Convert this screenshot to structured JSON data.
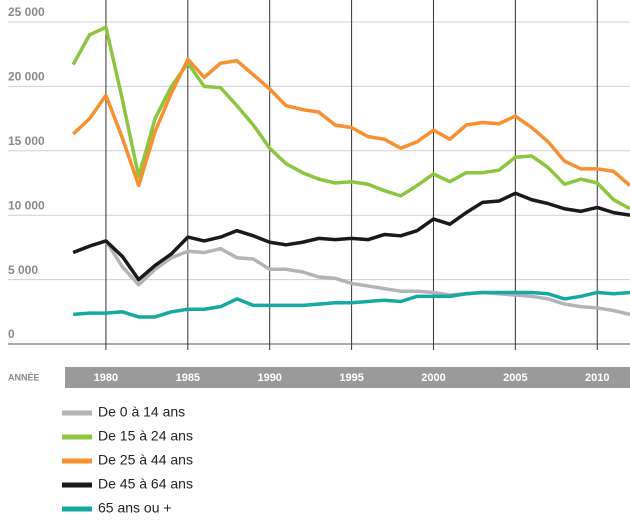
{
  "chart_data": {
    "type": "line",
    "x_label": "ANNÉE",
    "x": [
      1978,
      1979,
      1980,
      1981,
      1982,
      1983,
      1984,
      1985,
      1986,
      1987,
      1988,
      1989,
      1990,
      1991,
      1992,
      1993,
      1994,
      1995,
      1996,
      1997,
      1998,
      1999,
      2000,
      2001,
      2002,
      2003,
      2004,
      2005,
      2006,
      2007,
      2008,
      2009,
      2010,
      2011,
      2012
    ],
    "xlim": [
      1977.5,
      2012
    ],
    "xticks": [
      1980,
      1985,
      1990,
      1995,
      2000,
      2005,
      2010
    ],
    "ylim": [
      0,
      25000
    ],
    "yticks": [
      0,
      {
        "value": 5000,
        "label": "5 000"
      },
      {
        "value": 10000,
        "label": "10 000"
      },
      {
        "value": 15000,
        "label": "15 000"
      },
      {
        "value": 20000,
        "label": "20 000"
      },
      {
        "value": 25000,
        "label": "25 000"
      }
    ],
    "grid": true,
    "series": [
      {
        "name": "De 0 à 14 ans",
        "color": "#b3b3b8",
        "values": [
          7100,
          7600,
          8000,
          6000,
          4600,
          5800,
          6700,
          7200,
          7100,
          7400,
          6700,
          6600,
          5800,
          5800,
          5600,
          5200,
          5100,
          4700,
          4500,
          4300,
          4100,
          4100,
          4000,
          3800,
          3900,
          4000,
          3900,
          3800,
          3700,
          3500,
          3100,
          2900,
          2800,
          2600,
          2300
        ]
      },
      {
        "name": "De 15 à 24 ans",
        "color": "#8cc63f",
        "values": [
          21700,
          24000,
          24600,
          19000,
          13000,
          17500,
          20000,
          21800,
          20000,
          19900,
          18500,
          17000,
          15200,
          14000,
          13300,
          12800,
          12500,
          12600,
          12400,
          11900,
          11500,
          12300,
          13200,
          12600,
          13300,
          13300,
          13500,
          14500,
          14600,
          13700,
          12400,
          12800,
          12500,
          11200,
          10500
        ]
      },
      {
        "name": "De 25 à 44 ans",
        "color": "#f7902f",
        "values": [
          16300,
          17500,
          19300,
          16000,
          12300,
          16500,
          19500,
          22100,
          20700,
          21800,
          22000,
          20900,
          19800,
          18500,
          18200,
          18000,
          17000,
          16800,
          16100,
          15900,
          15200,
          15700,
          16600,
          15900,
          17000,
          17200,
          17100,
          17700,
          16800,
          15700,
          14200,
          13600,
          13600,
          13400,
          12300
        ]
      },
      {
        "name": "De 45 à 64 ans",
        "color": "#1a1a1a",
        "values": [
          7100,
          7600,
          8000,
          6800,
          5000,
          6100,
          7000,
          8300,
          8000,
          8300,
          8800,
          8400,
          7900,
          7700,
          7900,
          8200,
          8100,
          8200,
          8100,
          8500,
          8400,
          8800,
          9700,
          9300,
          10200,
          11000,
          11100,
          11700,
          11200,
          10900,
          10500,
          10300,
          10600,
          10200,
          10000
        ]
      },
      {
        "name": "65 ans ou +",
        "color": "#14aaa0",
        "values": [
          2300,
          2400,
          2400,
          2500,
          2100,
          2100,
          2500,
          2700,
          2700,
          2900,
          3500,
          3000,
          3000,
          3000,
          3000,
          3100,
          3200,
          3200,
          3300,
          3400,
          3300,
          3700,
          3700,
          3700,
          3900,
          4000,
          4000,
          4000,
          4000,
          3900,
          3500,
          3700,
          4000,
          3900,
          4000
        ]
      }
    ]
  }
}
